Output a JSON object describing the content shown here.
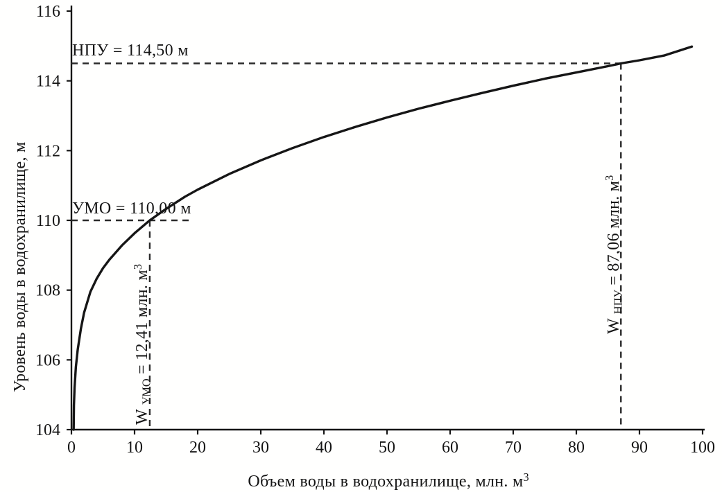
{
  "chart_data": {
    "type": "line",
    "title": "",
    "xlabel": {
      "text": "Объем воды в водохранилище, млн. м",
      "sup": "3"
    },
    "ylabel": "Уровень воды в водохранилище, м",
    "xlim": [
      0,
      100
    ],
    "ylim": [
      104,
      116
    ],
    "x_ticks": [
      0,
      10,
      20,
      30,
      40,
      50,
      60,
      70,
      80,
      90,
      100
    ],
    "y_ticks": [
      104,
      106,
      108,
      110,
      112,
      114,
      116
    ],
    "grid": false,
    "legend": false,
    "series": [
      {
        "name": "reservoir-volume-level-curve",
        "color": "#161616",
        "points": [
          [
            0.35,
            104.0
          ],
          [
            0.4,
            104.7
          ],
          [
            0.5,
            105.2
          ],
          [
            0.7,
            105.8
          ],
          [
            1,
            106.3
          ],
          [
            1.5,
            106.9
          ],
          [
            2,
            107.35
          ],
          [
            3,
            107.95
          ],
          [
            4,
            108.33
          ],
          [
            5,
            108.63
          ],
          [
            6,
            108.87
          ],
          [
            8,
            109.28
          ],
          [
            10,
            109.63
          ],
          [
            12.41,
            110.0
          ],
          [
            15,
            110.33
          ],
          [
            18,
            110.68
          ],
          [
            20,
            110.88
          ],
          [
            25,
            111.33
          ],
          [
            30,
            111.72
          ],
          [
            35,
            112.07
          ],
          [
            40,
            112.39
          ],
          [
            45,
            112.68
          ],
          [
            50,
            112.95
          ],
          [
            55,
            113.2
          ],
          [
            60,
            113.43
          ],
          [
            65,
            113.65
          ],
          [
            70,
            113.86
          ],
          [
            75,
            114.06
          ],
          [
            80,
            114.24
          ],
          [
            85,
            114.42
          ],
          [
            87.06,
            114.5
          ],
          [
            90,
            114.59
          ],
          [
            94,
            114.73
          ],
          [
            98.3,
            114.98
          ]
        ]
      }
    ],
    "key_points": {
      "NPU": {
        "level_m": 114.5,
        "volume_mln_m3": 87.06
      },
      "UMO": {
        "level_m": 110.0,
        "volume_mln_m3": 12.41
      }
    },
    "reference_lines": [
      {
        "id": "npu",
        "level": 114.5,
        "volume": 87.06,
        "h_dash_to_volume": 87.06
      },
      {
        "id": "umo",
        "level": 110.0,
        "volume": 12.41,
        "h_dash_to_volume": 18.9
      }
    ]
  },
  "annotations": {
    "npu_label": "НПУ = 114,50 м",
    "umo_label": "УМО = 110,00 м",
    "w_umo": {
      "prefix": "W ",
      "sub": "УМО",
      "mid": " = 12,41 млн. м",
      "sup": "3"
    },
    "w_npu": {
      "prefix": "W ",
      "sub": "НПУ",
      "mid": " = 87,06 млн. м",
      "sup": "3"
    }
  },
  "colors": {
    "ink": "#151515",
    "curve": "#161616",
    "dash": "#2b2b2b",
    "background": "#ffffff"
  }
}
